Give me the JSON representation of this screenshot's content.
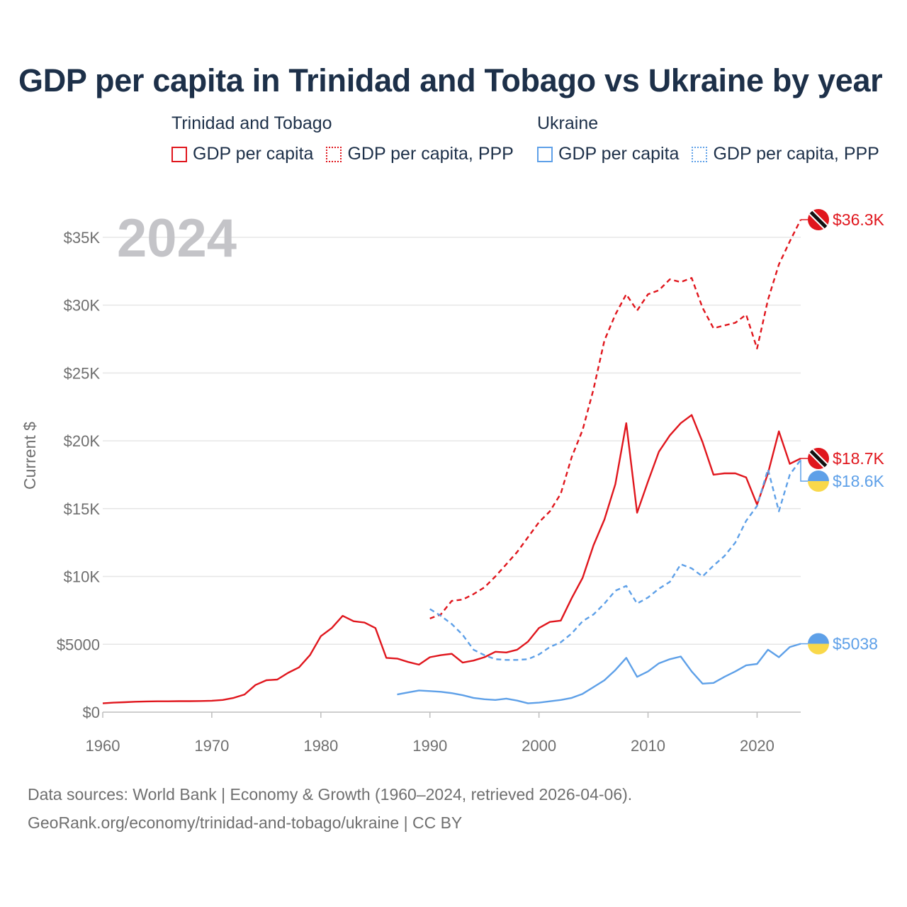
{
  "title": "GDP per capita in Trinidad and Tobago vs Ukraine by year",
  "legend": {
    "groups": [
      {
        "country": "Trinidad and Tobago",
        "items": [
          "GDP per capita",
          "GDP per capita, PPP"
        ]
      },
      {
        "country": "Ukraine",
        "items": [
          "GDP per capita",
          "GDP per capita, PPP"
        ]
      }
    ]
  },
  "footer": {
    "line1": "Data sources: World Bank | Economy & Growth (1960–2024, retrieved 2026-04-06).",
    "line2": "GeoRank.org/economy/trinidad-and-tobago/ukraine | CC BY"
  },
  "colors": {
    "trinidad": "#e0161d",
    "ukraine": "#5ea0e8",
    "grid": "#e6e6e6",
    "axis": "#bdbdbd"
  },
  "chart_data": {
    "type": "line",
    "title": "GDP per capita in Trinidad and Tobago vs Ukraine by year",
    "highlight_year": "2024",
    "xlabel": "",
    "ylabel": "Current $",
    "xlim": [
      1960,
      2024
    ],
    "ylim": [
      0,
      36300
    ],
    "x_ticks": [
      1960,
      1970,
      1980,
      1990,
      2000,
      2010,
      2020
    ],
    "x_tick_labels": [
      "1960",
      "1970",
      "1980",
      "1990",
      "2000",
      "2010",
      "2020"
    ],
    "y_ticks": [
      0,
      5000,
      10000,
      15000,
      20000,
      25000,
      30000,
      35000
    ],
    "y_tick_labels": [
      "$0",
      "$5000",
      "$10K",
      "$15K",
      "$20K",
      "$25K",
      "$30K",
      "$35K"
    ],
    "series": [
      {
        "name": "Trinidad and Tobago GDP per capita",
        "country": "Trinidad and Tobago",
        "style": "solid",
        "color": "#e0161d",
        "end_label": "$18.7K",
        "x": [
          1960,
          1961,
          1962,
          1963,
          1964,
          1965,
          1966,
          1967,
          1968,
          1969,
          1970,
          1971,
          1972,
          1973,
          1974,
          1975,
          1976,
          1977,
          1978,
          1979,
          1980,
          1981,
          1982,
          1983,
          1984,
          1985,
          1986,
          1987,
          1988,
          1989,
          1990,
          1991,
          1992,
          1993,
          1994,
          1995,
          1996,
          1997,
          1998,
          1999,
          2000,
          2001,
          2002,
          2003,
          2004,
          2005,
          2006,
          2007,
          2008,
          2009,
          2010,
          2011,
          2012,
          2013,
          2014,
          2015,
          2016,
          2017,
          2018,
          2019,
          2020,
          2021,
          2022,
          2023,
          2024
        ],
        "values": [
          650,
          700,
          730,
          770,
          790,
          800,
          800,
          810,
          810,
          820,
          840,
          900,
          1050,
          1300,
          2000,
          2350,
          2400,
          2900,
          3300,
          4200,
          5600,
          6200,
          7100,
          6700,
          6600,
          6200,
          4000,
          3950,
          3700,
          3500,
          4050,
          4200,
          4300,
          3650,
          3800,
          4050,
          4450,
          4400,
          4600,
          5200,
          6200,
          6650,
          6750,
          8400,
          9900,
          12300,
          14200,
          16800,
          21300,
          14700,
          17000,
          19200,
          20400,
          21300,
          21900,
          19900,
          17500,
          17600,
          17600,
          17300,
          15300,
          17600,
          20700,
          18300,
          18700
        ]
      },
      {
        "name": "Trinidad and Tobago GDP per capita, PPP",
        "country": "Trinidad and Tobago",
        "style": "dashed",
        "color": "#e0161d",
        "end_label": "$36.3K",
        "x": [
          1990,
          1991,
          1992,
          1993,
          1994,
          1995,
          1996,
          1997,
          1998,
          1999,
          2000,
          2001,
          2002,
          2003,
          2004,
          2005,
          2006,
          2007,
          2008,
          2009,
          2010,
          2011,
          2012,
          2013,
          2014,
          2015,
          2016,
          2017,
          2018,
          2019,
          2020,
          2021,
          2022,
          2023,
          2024
        ],
        "values": [
          6900,
          7200,
          8200,
          8300,
          8700,
          9200,
          10000,
          10900,
          11800,
          12900,
          14000,
          14800,
          16100,
          18800,
          20800,
          23800,
          27400,
          29300,
          30800,
          29600,
          30800,
          31100,
          31900,
          31700,
          32000,
          29800,
          28300,
          28500,
          28700,
          29300,
          26800,
          30400,
          33000,
          34700,
          36300
        ]
      },
      {
        "name": "Ukraine GDP per capita",
        "country": "Ukraine",
        "style": "solid",
        "color": "#5ea0e8",
        "end_label": "$5038",
        "x": [
          1987,
          1988,
          1989,
          1990,
          1991,
          1992,
          1993,
          1994,
          1995,
          1996,
          1997,
          1998,
          1999,
          2000,
          2001,
          2002,
          2003,
          2004,
          2005,
          2006,
          2007,
          2008,
          2009,
          2010,
          2011,
          2012,
          2013,
          2014,
          2015,
          2016,
          2017,
          2018,
          2019,
          2020,
          2021,
          2022,
          2023,
          2024
        ],
        "values": [
          1300,
          1450,
          1600,
          1550,
          1500,
          1400,
          1250,
          1050,
          950,
          900,
          1000,
          850,
          650,
          700,
          800,
          900,
          1050,
          1350,
          1850,
          2350,
          3100,
          4000,
          2600,
          3000,
          3600,
          3900,
          4100,
          3000,
          2100,
          2150,
          2600,
          3000,
          3450,
          3550,
          4600,
          4050,
          4800,
          5038
        ]
      },
      {
        "name": "Ukraine GDP per capita, PPP",
        "country": "Ukraine",
        "style": "dashed",
        "color": "#5ea0e8",
        "end_label": "$18.6K",
        "x": [
          1990,
          1991,
          1992,
          1993,
          1994,
          1995,
          1996,
          1997,
          1998,
          1999,
          2000,
          2001,
          2002,
          2003,
          2004,
          2005,
          2006,
          2007,
          2008,
          2009,
          2010,
          2011,
          2012,
          2013,
          2014,
          2015,
          2016,
          2017,
          2018,
          2019,
          2020,
          2021,
          2022,
          2023,
          2024
        ],
        "values": [
          7600,
          7100,
          6500,
          5700,
          4600,
          4200,
          3900,
          3850,
          3850,
          3900,
          4250,
          4800,
          5150,
          5800,
          6700,
          7200,
          8000,
          8950,
          9300,
          8000,
          8450,
          9100,
          9600,
          10900,
          10600,
          10000,
          10800,
          11500,
          12500,
          14100,
          15200,
          17900,
          14800,
          17500,
          18600
        ]
      }
    ]
  }
}
